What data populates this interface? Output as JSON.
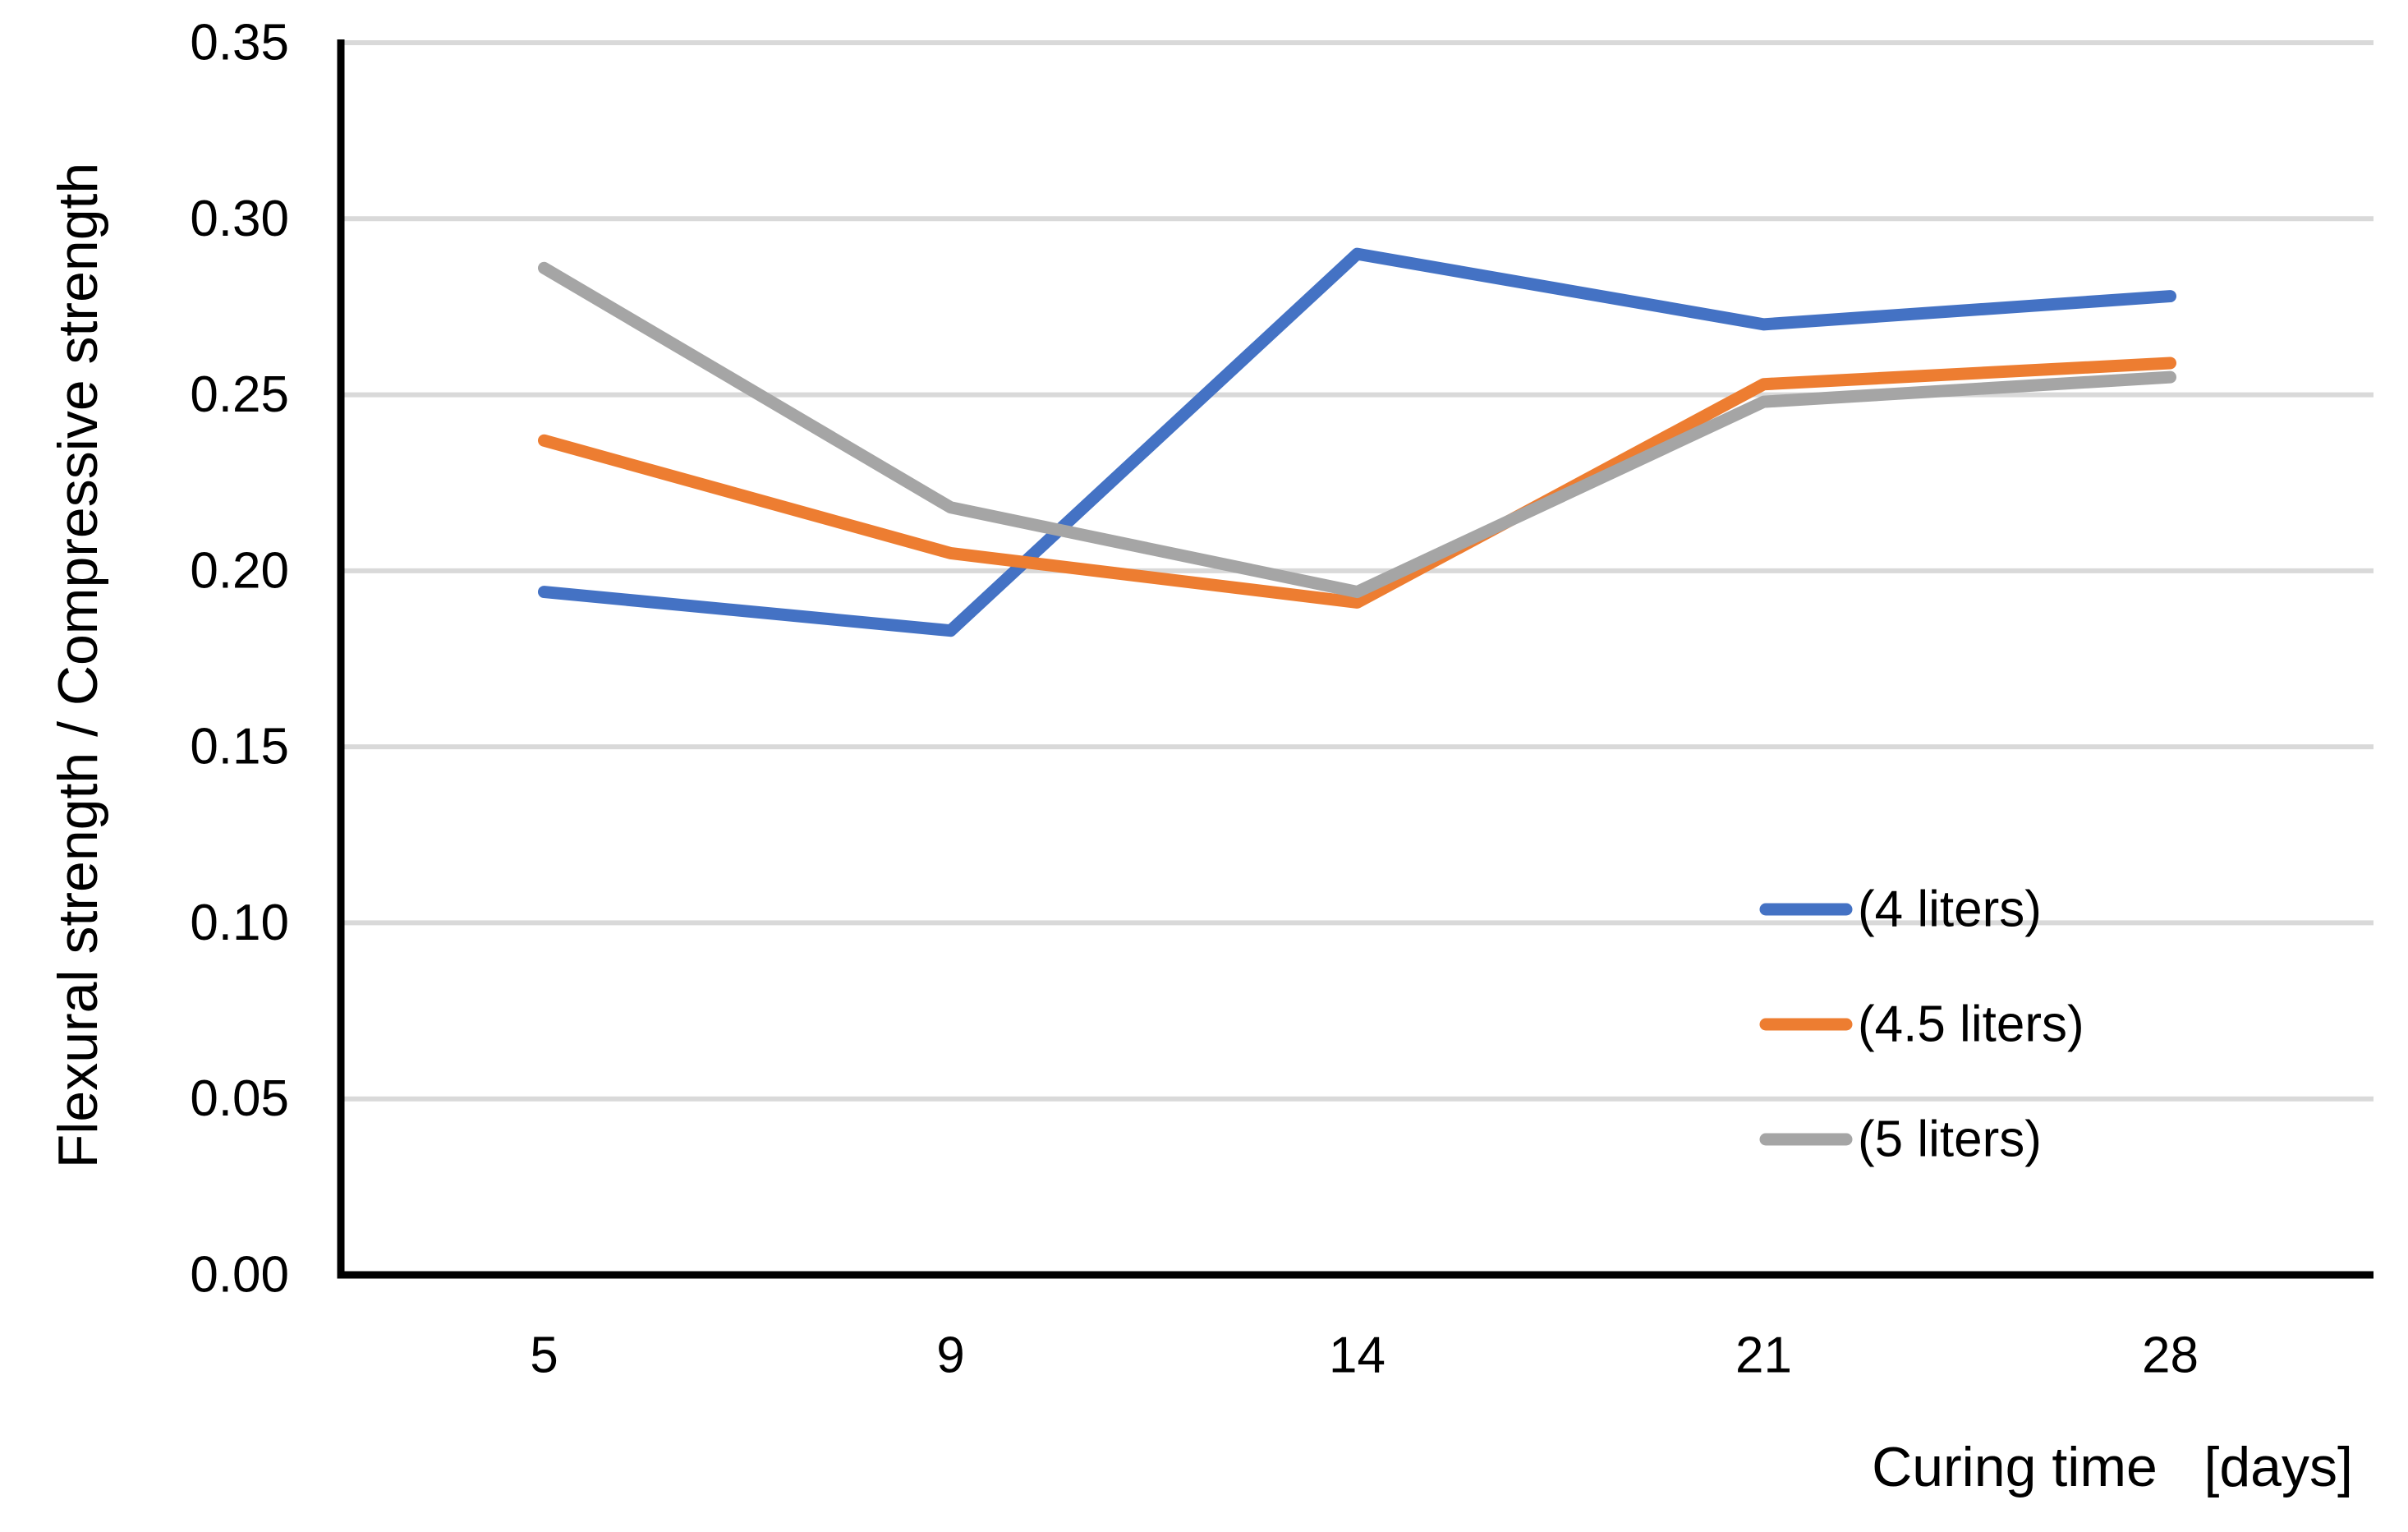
{
  "chart_data": {
    "type": "line",
    "title": "",
    "xlabel": "Curing time   [days]",
    "ylabel": "Flexural strength / Compressive strength",
    "categories": [
      "5",
      "9",
      "14",
      "21",
      "28"
    ],
    "series": [
      {
        "name": "(4 liters)",
        "color": "#4472C4",
        "values": [
          0.194,
          0.183,
          0.29,
          0.27,
          0.278
        ]
      },
      {
        "name": "(4.5 liters)",
        "color": "#ED7D31",
        "values": [
          0.237,
          0.205,
          0.191,
          0.253,
          0.259
        ]
      },
      {
        "name": "(5 liters)",
        "color": "#A5A5A5",
        "values": [
          0.286,
          0.218,
          0.194,
          0.248,
          0.255
        ]
      }
    ],
    "ylim": [
      0,
      0.35
    ],
    "y_tick_values": [
      0.0,
      0.05,
      0.1,
      0.15,
      0.2,
      0.25,
      0.3,
      0.35
    ],
    "y_tick_labels": [
      "0.00",
      "0.05",
      "0.10",
      "0.15",
      "0.20",
      "0.25",
      "0.30",
      "0.35"
    ],
    "grid": true,
    "grid_color": "#D9D9D9",
    "axis_color": "#000000",
    "text_color": "#000000",
    "legend_position": "inside-right-middle",
    "line_width": 15
  }
}
